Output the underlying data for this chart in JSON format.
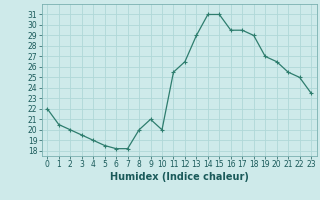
{
  "x": [
    0,
    1,
    2,
    3,
    4,
    5,
    6,
    7,
    8,
    9,
    10,
    11,
    12,
    13,
    14,
    15,
    16,
    17,
    18,
    19,
    20,
    21,
    22,
    23
  ],
  "y": [
    22.0,
    20.5,
    20.0,
    19.5,
    19.0,
    18.5,
    18.2,
    18.2,
    20.0,
    21.0,
    20.0,
    25.5,
    26.5,
    29.0,
    31.0,
    31.0,
    29.5,
    29.5,
    29.0,
    27.0,
    26.5,
    25.5,
    25.0,
    23.5
  ],
  "line_color": "#2e7d6e",
  "marker": "P",
  "marker_size": 2.5,
  "bg_color": "#ceeaea",
  "grid_color": "#b0d8d8",
  "xlabel": "Humidex (Indice chaleur)",
  "ylim": [
    17.5,
    32
  ],
  "xlim": [
    -0.5,
    23.5
  ],
  "yticks": [
    18,
    19,
    20,
    21,
    22,
    23,
    24,
    25,
    26,
    27,
    28,
    29,
    30,
    31
  ],
  "xticks": [
    0,
    1,
    2,
    3,
    4,
    5,
    6,
    7,
    8,
    9,
    10,
    11,
    12,
    13,
    14,
    15,
    16,
    17,
    18,
    19,
    20,
    21,
    22,
    23
  ],
  "tick_fontsize": 5.5,
  "xlabel_fontsize": 7.0
}
